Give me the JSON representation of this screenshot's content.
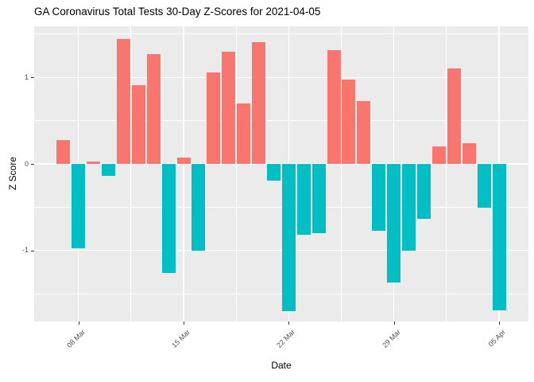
{
  "chart_data": {
    "type": "bar",
    "title": "GA Coronavirus Total Tests 30-Day Z-Scores for 2021-04-05",
    "xlabel": "Date",
    "ylabel": "Z Score",
    "categories": [
      "2021-03-07",
      "2021-03-08",
      "2021-03-09",
      "2021-03-10",
      "2021-03-11",
      "2021-03-12",
      "2021-03-13",
      "2021-03-14",
      "2021-03-15",
      "2021-03-16",
      "2021-03-17",
      "2021-03-18",
      "2021-03-19",
      "2021-03-20",
      "2021-03-21",
      "2021-03-22",
      "2021-03-23",
      "2021-03-24",
      "2021-03-25",
      "2021-03-26",
      "2021-03-27",
      "2021-03-28",
      "2021-03-29",
      "2021-03-30",
      "2021-03-31",
      "2021-04-01",
      "2021-04-02",
      "2021-04-03",
      "2021-04-04",
      "2021-04-05"
    ],
    "values": [
      0.28,
      -0.97,
      0.03,
      -0.14,
      1.44,
      0.91,
      1.27,
      -1.26,
      0.07,
      -1.0,
      1.06,
      1.3,
      0.7,
      1.41,
      -0.19,
      -1.7,
      -0.82,
      -0.8,
      1.31,
      0.97,
      0.73,
      -0.77,
      -1.37,
      -1.0,
      -0.63,
      0.2,
      1.1,
      0.24,
      -0.51,
      -1.69
    ],
    "x_tick_labels": [
      "08 Mar",
      "15 Mar",
      "22 Mar",
      "29 Mar",
      "05 Apr"
    ],
    "x_tick_day_indices": [
      1,
      8,
      15,
      22,
      29
    ],
    "x_minor_day_indices": [
      4.5,
      11.5,
      18.5,
      25.5
    ],
    "y_tick_labels": [
      "1",
      "0",
      "-1"
    ],
    "y_tick_values": [
      1,
      0,
      -1
    ],
    "y_minor_values": [
      1.5,
      0.5,
      -0.5,
      -1.5
    ],
    "ylim": [
      -1.82,
      1.59
    ],
    "grid": "on",
    "legend": "none",
    "colors": {
      "positive": "#F8766D",
      "negative": "#00BFC4",
      "panel_background": "#EBEBEB",
      "gridline": "#FFFFFF",
      "axis_tick_text": "#4D4D4D",
      "tick_mark": "#333333",
      "title_text": "#000000"
    }
  }
}
